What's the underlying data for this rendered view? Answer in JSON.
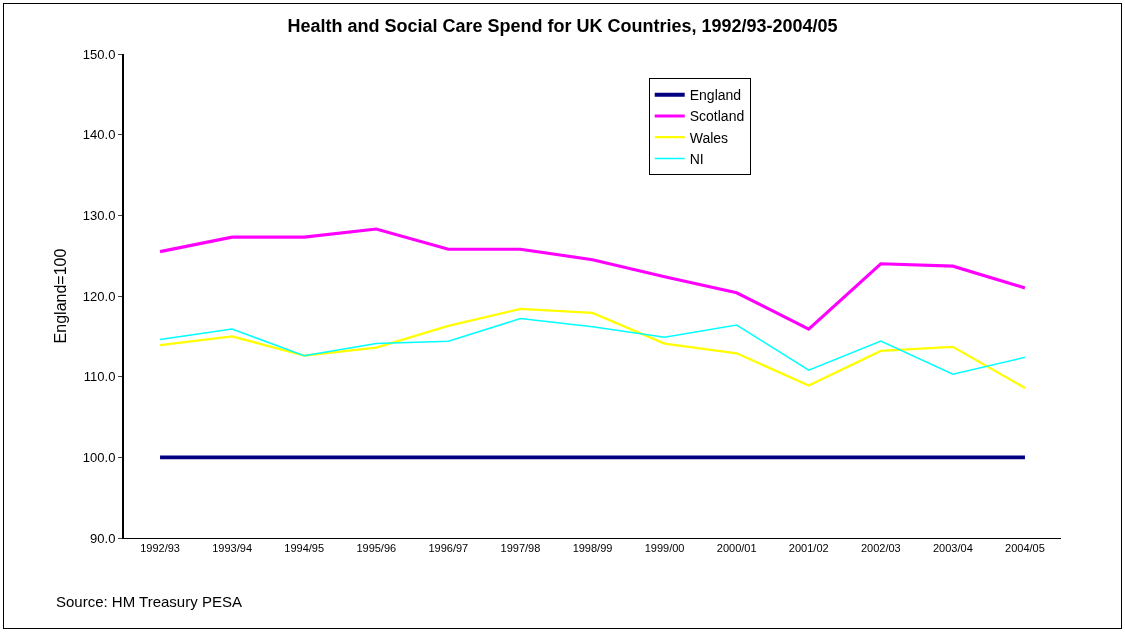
{
  "chart_data": {
    "type": "line",
    "title": "Health and Social Care Spend for UK Countries, 1992/93-2004/05",
    "ylabel": "England=100",
    "categories": [
      "1992/93",
      "1993/94",
      "1994/95",
      "1995/96",
      "1996/97",
      "1997/98",
      "1998/99",
      "1999/00",
      "2000/01",
      "2001/02",
      "2002/03",
      "2003/04",
      "2004/05"
    ],
    "series": [
      {
        "name": "England",
        "color": "#000080",
        "values": [
          100,
          100,
          100,
          100,
          100,
          100,
          100,
          100,
          100,
          100,
          100,
          100,
          100
        ]
      },
      {
        "name": "Scotland",
        "color": "#ff00ff",
        "values": [
          125.5,
          127.3,
          127.3,
          128.3,
          125.8,
          125.8,
          124.5,
          122.4,
          120.4,
          115.9,
          124.0,
          123.7,
          121.0
        ]
      },
      {
        "name": "Wales",
        "color": "#ffff00",
        "values": [
          113.9,
          115.0,
          112.6,
          113.6,
          116.3,
          118.4,
          117.9,
          114.1,
          112.9,
          108.9,
          113.2,
          113.7,
          108.6
        ]
      },
      {
        "name": "NI",
        "color": "#00ffff",
        "values": [
          114.6,
          115.9,
          112.6,
          114.1,
          114.4,
          117.2,
          116.2,
          114.9,
          116.4,
          110.8,
          114.4,
          110.3,
          112.4
        ]
      }
    ],
    "ylim": [
      90,
      150
    ],
    "yticks": [
      {
        "value": 90,
        "label": "90.0"
      },
      {
        "value": 100,
        "label": "100.0"
      },
      {
        "value": 110,
        "label": "110.0"
      },
      {
        "value": 120,
        "label": "120.0"
      },
      {
        "value": 130,
        "label": "130.0"
      },
      {
        "value": 140,
        "label": "140.0"
      },
      {
        "value": 150,
        "label": "150.0"
      }
    ],
    "grid": false,
    "legend": "top right",
    "marker": "none",
    "line_style": "solid",
    "annotations": [
      "Source: HM Treasury PESA"
    ]
  }
}
